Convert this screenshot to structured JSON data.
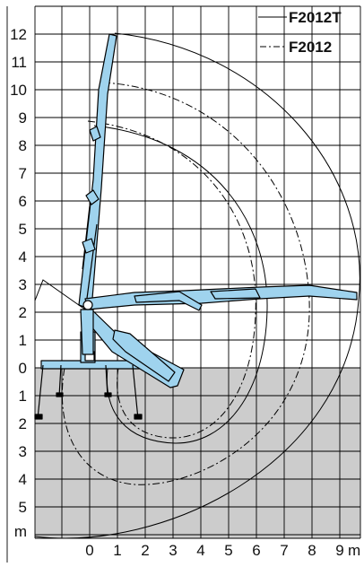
{
  "diagram": {
    "x_ticks": [
      "0",
      "1",
      "2",
      "3",
      "4",
      "5",
      "6",
      "7",
      "8",
      "9"
    ],
    "x_unit": "m",
    "y_ticks_above": [
      "0",
      "1",
      "2",
      "3",
      "4",
      "5",
      "6",
      "7",
      "8",
      "9",
      "10",
      "11",
      "12"
    ],
    "y_ticks_below": [
      "1",
      "2",
      "3",
      "4",
      "5"
    ],
    "y_unit": "m",
    "legend": [
      {
        "label": "F2012T",
        "style": "solid"
      },
      {
        "label": "F2012",
        "style": "dash-dot"
      }
    ],
    "colors": {
      "crane": "#9fd3ee",
      "below_ground": "#cccccc",
      "grid": "#000000"
    }
  }
}
